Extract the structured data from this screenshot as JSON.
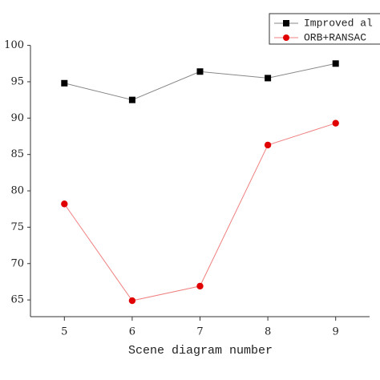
{
  "chart_data": {
    "type": "line",
    "xlabel": "Scene diagram number",
    "x": [
      5,
      6,
      7,
      8,
      9
    ],
    "xlim": [
      4.5,
      9.5
    ],
    "xticks": [
      5,
      6,
      7,
      8,
      9
    ],
    "ylim": [
      62.7,
      100
    ],
    "yticks": [
      65,
      70,
      75,
      80,
      85,
      90,
      95,
      100
    ],
    "legend": "upper right",
    "series": [
      {
        "name": "Improved al",
        "color": "#000000",
        "line_color": "#888888",
        "marker": "square",
        "values": [
          94.8,
          92.5,
          96.4,
          95.5,
          97.5
        ]
      },
      {
        "name": "ORB+RANSAC",
        "color": "#e00000",
        "line_color": "#f08080",
        "marker": "circle",
        "values": [
          78.2,
          64.9,
          66.9,
          86.3,
          89.3
        ]
      }
    ]
  }
}
